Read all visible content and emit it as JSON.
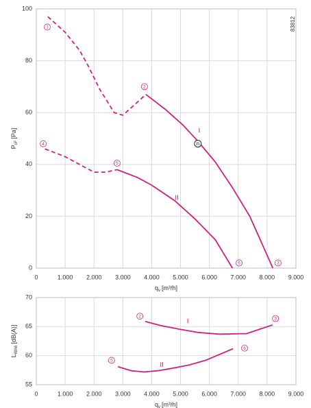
{
  "figure_id": "83812",
  "chart_data": [
    {
      "type": "line",
      "ylabel": {
        "main": "P",
        "sub": "sF",
        "unit": "[Pa]"
      },
      "xlabel": {
        "main": "q",
        "sub": "v",
        "unit": "[m³/h]"
      },
      "xlim": [
        0,
        9000
      ],
      "ylim": [
        0,
        100
      ],
      "xticks": [
        0,
        {
          "value": 1000,
          "label": "1.000"
        },
        {
          "value": 2000,
          "label": "2.000"
        },
        {
          "value": 3000,
          "label": "3.000"
        },
        {
          "value": 4000,
          "label": "4.000"
        },
        {
          "value": 5000,
          "label": "5.000"
        },
        {
          "value": 6000,
          "label": "6.000"
        },
        {
          "value": 7000,
          "label": "7.000"
        },
        {
          "value": 8000,
          "label": "8.000"
        },
        {
          "value": 9000,
          "label": "9.000"
        }
      ],
      "yticks": [
        0,
        20,
        40,
        60,
        80,
        100
      ],
      "grid": true,
      "series": [
        {
          "color": "#d21f7f",
          "linestyle": "dashed",
          "x": [
            400,
            1000,
            1500,
            1800,
            2200,
            2700,
            3000,
            3400,
            3800
          ],
          "values": [
            97,
            91,
            84,
            78,
            69,
            60,
            59,
            63,
            67
          ]
        },
        {
          "color": "#d21f7f",
          "linestyle": "solid",
          "x": [
            3800,
            4500,
            5100,
            5600,
            6200,
            6800,
            7400,
            8000,
            8200
          ],
          "values": [
            67,
            61,
            55,
            49,
            41,
            31,
            20,
            5,
            0
          ]
        },
        {
          "color": "#d21f7f",
          "linestyle": "dashed",
          "x": [
            300,
            1000,
            1500,
            2000,
            2400,
            2800
          ],
          "values": [
            46,
            43,
            40,
            37,
            37,
            38
          ]
        },
        {
          "color": "#d21f7f",
          "linestyle": "solid",
          "x": [
            2800,
            3500,
            4000,
            4800,
            5500,
            6200,
            6800
          ],
          "values": [
            38,
            35,
            32,
            26,
            19,
            11,
            0
          ]
        }
      ],
      "annotations": [
        {
          "text": "1",
          "style": "circled",
          "x": 380,
          "y": 93
        },
        {
          "text": "2",
          "style": "circled",
          "x": 3750,
          "y": 70
        },
        {
          "text": "3",
          "style": "circled",
          "x": 8380,
          "y": 2
        },
        {
          "text": "4",
          "style": "circled",
          "x": 240,
          "y": 48
        },
        {
          "text": "5",
          "style": "circled",
          "x": 2800,
          "y": 40.5
        },
        {
          "text": "6",
          "style": "circled",
          "x": 7030,
          "y": 2
        },
        {
          "text": "I",
          "style": "plain",
          "x": 5650,
          "y": 53
        },
        {
          "text": "II",
          "style": "plain",
          "x": 4870,
          "y": 27
        },
        {
          "text": "n",
          "style": "point",
          "x": 5600,
          "y": 48
        }
      ]
    },
    {
      "type": "line",
      "ylabel": {
        "main": "L",
        "sub": "WA6",
        "unit": "[dB(A)]"
      },
      "xlabel": {
        "main": "q",
        "sub": "v",
        "unit": "[m³/h]"
      },
      "xlim": [
        0,
        9000
      ],
      "ylim": [
        55,
        70
      ],
      "xticks": [
        0,
        {
          "value": 1000,
          "label": "1.000"
        },
        {
          "value": 2000,
          "label": "2.000"
        },
        {
          "value": 3000,
          "label": "3.000"
        },
        {
          "value": 4000,
          "label": "4.000"
        },
        {
          "value": 5000,
          "label": "5.000"
        },
        {
          "value": 6000,
          "label": "6.000"
        },
        {
          "value": 7000,
          "label": "7.000"
        },
        {
          "value": 8000,
          "label": "8.000"
        },
        {
          "value": 9000,
          "label": "9.000"
        }
      ],
      "yticks": [
        55,
        60,
        65,
        70
      ],
      "grid": true,
      "series": [
        {
          "color": "#d21f7f",
          "linestyle": "solid",
          "x": [
            3775,
            4300,
            4915,
            5600,
            6340,
            7290,
            8190
          ],
          "values": [
            65.9,
            65.2,
            64.6,
            64.0,
            63.7,
            63.8,
            65.3
          ]
        },
        {
          "color": "#d21f7f",
          "linestyle": "solid",
          "x": [
            2830,
            3300,
            3730,
            4200,
            4680,
            5300,
            5870,
            6820
          ],
          "values": [
            58.1,
            57.4,
            57.2,
            57.4,
            57.8,
            58.4,
            59.2,
            61.2
          ]
        }
      ],
      "annotations": [
        {
          "text": "2",
          "style": "circled",
          "x": 3590,
          "y": 66.8
        },
        {
          "text": "3",
          "style": "circled",
          "x": 8290,
          "y": 66.4
        },
        {
          "text": "5",
          "style": "circled",
          "x": 2610,
          "y": 59.2
        },
        {
          "text": "6",
          "style": "circled",
          "x": 7220,
          "y": 61.3
        },
        {
          "text": "I",
          "style": "plain",
          "x": 5250,
          "y": 65.9
        },
        {
          "text": "II",
          "style": "plain",
          "x": 4350,
          "y": 58.4
        }
      ]
    }
  ]
}
